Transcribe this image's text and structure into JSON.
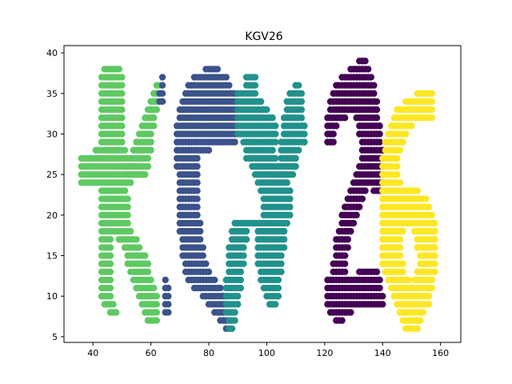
{
  "chart_data": {
    "type": "scatter",
    "title": "KGV26",
    "xlabel": "",
    "ylabel": "",
    "xlim": [
      30,
      167
    ],
    "ylim": [
      4.3,
      40.9
    ],
    "xticks": [
      40,
      60,
      80,
      100,
      120,
      140,
      160
    ],
    "yticks": [
      5,
      10,
      15,
      20,
      25,
      30,
      35,
      40
    ],
    "grid": false,
    "legend": "none",
    "colors": {
      "K": "#5ec962",
      "G": "#3b528b",
      "V": "#21918c",
      "2": "#440154",
      "6": "#fde725"
    },
    "series": [
      {
        "key": "K",
        "color": "#5ec962",
        "rows": [
          [
            38,
            44,
            49
          ],
          [
            37,
            43,
            50
          ],
          [
            36,
            43,
            50
          ],
          [
            35,
            43,
            50
          ],
          [
            34,
            43,
            50
          ],
          [
            33,
            43,
            50
          ],
          [
            32,
            43,
            50
          ],
          [
            31,
            43,
            50
          ],
          [
            30,
            43,
            50
          ],
          [
            29,
            43,
            50
          ],
          [
            28,
            41,
            51
          ],
          [
            27,
            36,
            53
          ],
          [
            26,
            36,
            55
          ],
          [
            25,
            36,
            57
          ],
          [
            24,
            36,
            53
          ],
          [
            23,
            43,
            51
          ],
          [
            22,
            43,
            52
          ],
          [
            21,
            43,
            52
          ],
          [
            20,
            43,
            52
          ],
          [
            19,
            43,
            52
          ],
          [
            18,
            43,
            53
          ],
          [
            17,
            43,
            46
          ],
          [
            17,
            49,
            55
          ],
          [
            16,
            43,
            46
          ],
          [
            16,
            51,
            56
          ],
          [
            15,
            43,
            46
          ],
          [
            15,
            52,
            58
          ],
          [
            14,
            43,
            46
          ],
          [
            14,
            52,
            59
          ],
          [
            13,
            43,
            46
          ],
          [
            13,
            53,
            59
          ],
          [
            12,
            43,
            46
          ],
          [
            12,
            54,
            60
          ],
          [
            11,
            43,
            46
          ],
          [
            11,
            55,
            61
          ],
          [
            10,
            43,
            46
          ],
          [
            10,
            56,
            62
          ],
          [
            9,
            44,
            47
          ],
          [
            9,
            57,
            62
          ],
          [
            8,
            46,
            48
          ],
          [
            8,
            58,
            62
          ],
          [
            7,
            59,
            62
          ],
          [
            36,
            62,
            63
          ],
          [
            35,
            61,
            63
          ],
          [
            34,
            60,
            62
          ],
          [
            33,
            59,
            62
          ],
          [
            32,
            58,
            61
          ],
          [
            31,
            57,
            61
          ],
          [
            30,
            56,
            60
          ],
          [
            29,
            55,
            60
          ],
          [
            28,
            54,
            60
          ],
          [
            27,
            53,
            59
          ],
          [
            26,
            52,
            59
          ],
          [
            25,
            51,
            58
          ]
        ]
      },
      {
        "key": "G",
        "color": "#3b528b",
        "rows": [
          [
            38,
            79,
            83
          ],
          [
            37,
            75,
            86
          ],
          [
            36,
            73,
            87
          ],
          [
            35,
            72,
            89
          ],
          [
            34,
            71,
            89
          ],
          [
            33,
            70,
            89
          ],
          [
            32,
            70,
            89
          ],
          [
            31,
            69,
            89
          ],
          [
            30,
            69,
            89
          ],
          [
            29,
            69,
            89
          ],
          [
            28,
            69,
            80
          ],
          [
            27,
            69,
            76
          ],
          [
            26,
            69,
            76
          ],
          [
            25,
            70,
            76
          ],
          [
            24,
            70,
            76
          ],
          [
            23,
            70,
            76
          ],
          [
            22,
            70,
            76
          ],
          [
            21,
            70,
            76
          ],
          [
            20,
            70,
            76
          ],
          [
            19,
            70,
            77
          ],
          [
            18,
            70,
            77
          ],
          [
            17,
            71,
            77
          ],
          [
            16,
            71,
            78
          ],
          [
            15,
            71,
            78
          ],
          [
            14,
            72,
            79
          ],
          [
            13,
            72,
            80
          ],
          [
            12,
            73,
            82
          ],
          [
            11,
            75,
            84
          ],
          [
            10,
            78,
            86
          ],
          [
            9,
            80,
            86
          ],
          [
            8,
            82,
            86
          ],
          [
            7,
            84,
            86
          ],
          [
            6,
            86,
            86
          ],
          [
            37,
            64,
            64
          ],
          [
            36,
            64,
            64
          ],
          [
            35,
            63,
            64
          ],
          [
            34,
            63,
            64
          ],
          [
            12,
            65,
            65
          ],
          [
            11,
            65,
            66
          ],
          [
            10,
            65,
            66
          ],
          [
            9,
            65,
            66
          ],
          [
            8,
            65,
            66
          ]
        ]
      },
      {
        "key": "V",
        "color": "#21918c",
        "rows": [
          [
            37,
            93,
            96
          ],
          [
            36,
            93,
            96
          ],
          [
            35,
            90,
            96
          ],
          [
            34,
            90,
            98
          ],
          [
            33,
            90,
            100
          ],
          [
            32,
            90,
            102
          ],
          [
            31,
            90,
            103
          ],
          [
            30,
            90,
            103
          ],
          [
            29,
            92,
            103
          ],
          [
            28,
            93,
            102
          ],
          [
            27,
            93,
            103
          ],
          [
            26,
            95,
            104
          ],
          [
            25,
            96,
            106
          ],
          [
            24,
            97,
            107
          ],
          [
            23,
            98,
            108
          ],
          [
            22,
            99,
            108
          ],
          [
            21,
            99,
            108
          ],
          [
            20,
            99,
            108
          ],
          [
            19,
            89,
            107
          ],
          [
            18,
            88,
            93
          ],
          [
            18,
            97,
            106
          ],
          [
            17,
            88,
            93
          ],
          [
            17,
            97,
            106
          ],
          [
            16,
            87,
            92
          ],
          [
            16,
            97,
            106
          ],
          [
            15,
            87,
            92
          ],
          [
            15,
            97,
            105
          ],
          [
            14,
            87,
            92
          ],
          [
            14,
            97,
            105
          ],
          [
            13,
            87,
            91
          ],
          [
            13,
            98,
            105
          ],
          [
            12,
            86,
            91
          ],
          [
            12,
            98,
            104
          ],
          [
            11,
            86,
            91
          ],
          [
            11,
            99,
            104
          ],
          [
            10,
            86,
            90
          ],
          [
            10,
            100,
            104
          ],
          [
            9,
            86,
            90
          ],
          [
            9,
            101,
            103
          ],
          [
            8,
            86,
            89
          ],
          [
            7,
            87,
            89
          ],
          [
            6,
            87,
            88
          ],
          [
            36,
            110,
            111
          ],
          [
            35,
            108,
            112
          ],
          [
            34,
            107,
            112
          ],
          [
            33,
            107,
            112
          ],
          [
            32,
            106,
            112
          ],
          [
            31,
            106,
            113
          ],
          [
            30,
            106,
            113
          ],
          [
            29,
            105,
            113
          ],
          [
            28,
            105,
            111
          ],
          [
            27,
            105,
            110
          ],
          [
            26,
            105,
            110
          ],
          [
            25,
            104,
            109
          ]
        ]
      },
      {
        "key": "2",
        "color": "#440154",
        "rows": [
          [
            39,
            132,
            134
          ],
          [
            38,
            129,
            135
          ],
          [
            37,
            126,
            136
          ],
          [
            36,
            124,
            137
          ],
          [
            35,
            123,
            137
          ],
          [
            34,
            122,
            138
          ],
          [
            33,
            122,
            138
          ],
          [
            32,
            121,
            127
          ],
          [
            32,
            131,
            138
          ],
          [
            31,
            121,
            124
          ],
          [
            31,
            132,
            139
          ],
          [
            30,
            121,
            123
          ],
          [
            30,
            132,
            139
          ],
          [
            29,
            121,
            123
          ],
          [
            29,
            133,
            139
          ],
          [
            28,
            133,
            140
          ],
          [
            27,
            133,
            140
          ],
          [
            26,
            132,
            140
          ],
          [
            25,
            131,
            140
          ],
          [
            24,
            130,
            140
          ],
          [
            23,
            129,
            134
          ],
          [
            23,
            137,
            139
          ],
          [
            22,
            128,
            133
          ],
          [
            21,
            127,
            132
          ],
          [
            20,
            126,
            131
          ],
          [
            19,
            126,
            130
          ],
          [
            18,
            125,
            129
          ],
          [
            17,
            124,
            128
          ],
          [
            16,
            124,
            128
          ],
          [
            15,
            124,
            127
          ],
          [
            14,
            123,
            127
          ],
          [
            13,
            123,
            127
          ],
          [
            13,
            132,
            138
          ],
          [
            12,
            121,
            139
          ],
          [
            11,
            121,
            139
          ],
          [
            10,
            121,
            140
          ],
          [
            9,
            121,
            140
          ],
          [
            8,
            122,
            129
          ],
          [
            7,
            124,
            126
          ]
        ]
      },
      {
        "key": "6",
        "color": "#fde725",
        "rows": [
          [
            35,
            152,
            157
          ],
          [
            34,
            148,
            157
          ],
          [
            33,
            145,
            157
          ],
          [
            32,
            144,
            157
          ],
          [
            31,
            143,
            150
          ],
          [
            30,
            142,
            148
          ],
          [
            29,
            141,
            147
          ],
          [
            28,
            141,
            146
          ],
          [
            27,
            140,
            145
          ],
          [
            26,
            140,
            145
          ],
          [
            25,
            140,
            145
          ],
          [
            24,
            140,
            146
          ],
          [
            23,
            140,
            152
          ],
          [
            22,
            140,
            155
          ],
          [
            21,
            140,
            156
          ],
          [
            20,
            140,
            157
          ],
          [
            19,
            140,
            158
          ],
          [
            18,
            140,
            147
          ],
          [
            18,
            151,
            158
          ],
          [
            17,
            140,
            146
          ],
          [
            17,
            152,
            158
          ],
          [
            16,
            140,
            146
          ],
          [
            16,
            152,
            158
          ],
          [
            15,
            140,
            146
          ],
          [
            15,
            153,
            158
          ],
          [
            14,
            140,
            147
          ],
          [
            14,
            153,
            158
          ],
          [
            13,
            141,
            147
          ],
          [
            13,
            152,
            158
          ],
          [
            12,
            142,
            149
          ],
          [
            12,
            151,
            157
          ],
          [
            11,
            143,
            157
          ],
          [
            10,
            144,
            156
          ],
          [
            9,
            145,
            156
          ],
          [
            8,
            146,
            154
          ],
          [
            7,
            147,
            153
          ],
          [
            6,
            148,
            152
          ]
        ]
      }
    ]
  }
}
